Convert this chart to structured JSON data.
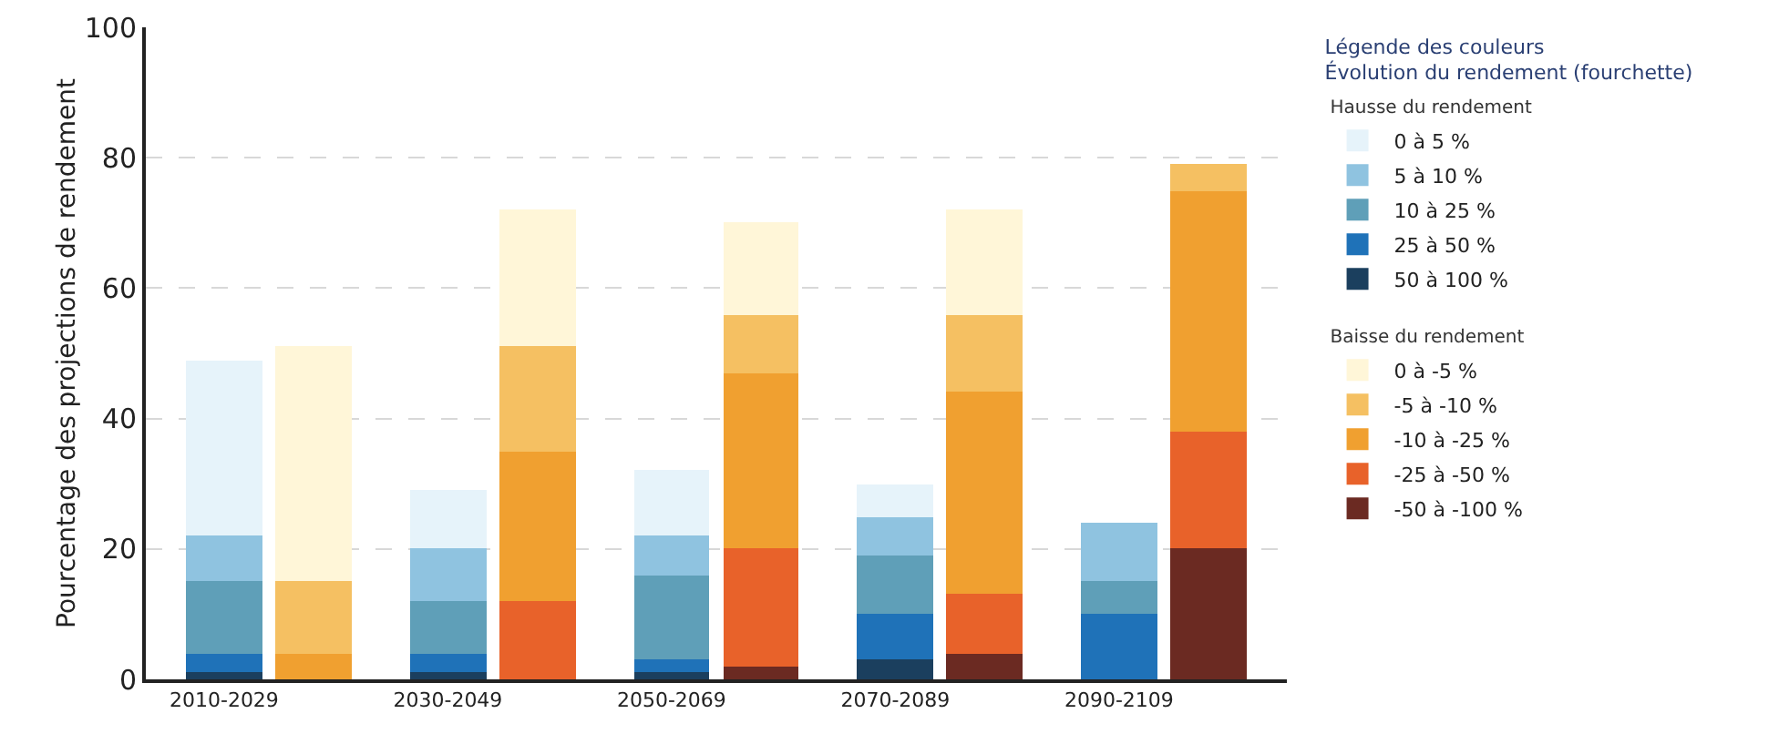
{
  "chart_data": {
    "type": "bar",
    "stacked": true,
    "ylabel": "Pourcentage des projections de rendement",
    "legend_title": "Légende des couleurs\nÉvolution du rendement (fourchette)",
    "annotations": [
      "Hausse du rendement",
      "Baisse du rendement"
    ],
    "categories": [
      "2010-2029",
      null,
      "2030-2049",
      null,
      "2050-2069",
      null,
      "2070-2089",
      null,
      "2090-2109",
      null
    ],
    "ylim": [
      0,
      100
    ],
    "yticks": [
      0,
      20,
      40,
      60,
      80,
      100
    ],
    "grid": "y",
    "legend": "right",
    "series": [
      {
        "name": "50 à 100 %",
        "color": "#1b3f5e",
        "values": [
          1,
          null,
          1,
          null,
          1,
          null,
          3,
          null,
          0,
          null
        ]
      },
      {
        "name": "25 à 50 %",
        "color": "#1f72b8",
        "values": [
          3,
          null,
          3,
          null,
          2,
          null,
          7,
          null,
          10,
          null
        ]
      },
      {
        "name": "10 à 25 %",
        "color": "#5f9fb8",
        "values": [
          11,
          null,
          8,
          null,
          13,
          null,
          9,
          null,
          5,
          null
        ]
      },
      {
        "name": "5 à 10 %",
        "color": "#8fc3e0",
        "values": [
          7,
          null,
          8,
          null,
          6,
          null,
          6,
          null,
          9,
          null
        ]
      },
      {
        "name": "0 à 5 %",
        "color": "#e6f3fa",
        "values": [
          27,
          null,
          9,
          null,
          10,
          null,
          5,
          null,
          0,
          null
        ]
      },
      {
        "name": "-50 à -100 %",
        "color": "#6b2a22",
        "values": [
          null,
          0,
          null,
          0,
          null,
          2,
          null,
          4,
          null,
          20
        ]
      },
      {
        "name": "-25 à -50 %",
        "color": "#e8622a",
        "values": [
          null,
          0,
          null,
          12,
          null,
          18,
          null,
          9,
          null,
          18
        ]
      },
      {
        "name": "-10 à -25 %",
        "color": "#f0a030",
        "values": [
          null,
          4,
          null,
          23,
          null,
          27,
          null,
          31,
          null,
          37
        ]
      },
      {
        "name": "-5 à -10 %",
        "color": "#f5c062",
        "values": [
          null,
          11,
          null,
          16,
          null,
          9,
          null,
          12,
          null,
          4
        ]
      },
      {
        "name": "0 à -5 %",
        "color": "#fff6d8",
        "values": [
          null,
          36,
          null,
          21,
          null,
          14,
          null,
          16,
          null,
          0
        ]
      }
    ]
  }
}
